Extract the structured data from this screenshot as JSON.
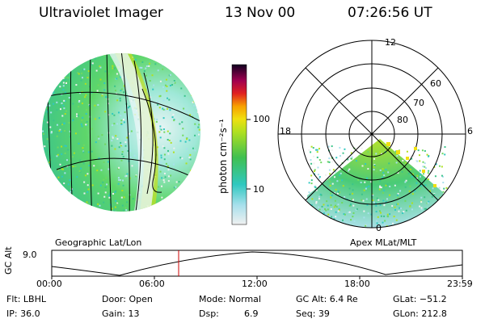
{
  "header": {
    "title": "Ultraviolet Imager",
    "date": "13 Nov 00",
    "time": "07:26:56 UT"
  },
  "geo_panel": {
    "label": "Geographic Lat/Lon"
  },
  "polar_panel": {
    "label": "Apex MLat/MLT",
    "mlt_labels": {
      "top": "12",
      "left": "18",
      "right": "6",
      "bottom": "0"
    },
    "lat_labels": [
      "60",
      "70",
      "80"
    ]
  },
  "colorbar": {
    "label": "photon cm⁻²s⁻¹",
    "ticks": [
      "100",
      "10"
    ]
  },
  "altitude_plot": {
    "ylabel": "GC Alt",
    "ytick": "9.0",
    "xticks": [
      "00:00",
      "06:00",
      "12:00",
      "18:00",
      "23:59"
    ],
    "current_time_marker": "07:26:56"
  },
  "info": {
    "flt": "Flt: LBHL",
    "ip": "IP: 36.0",
    "door": "Door: Open",
    "gain": "Gain: 13",
    "mode": "Mode: Normal",
    "dsp": "Dsp:",
    "dsp_val": "6.9",
    "gcalt": "GC Alt: 6.4 Re",
    "seq": "Seq: 39",
    "glat": "GLat: −51.2",
    "glon": "GLon: 212.8"
  },
  "colors": {
    "marker": "#cc0000",
    "grid": "#000000"
  }
}
